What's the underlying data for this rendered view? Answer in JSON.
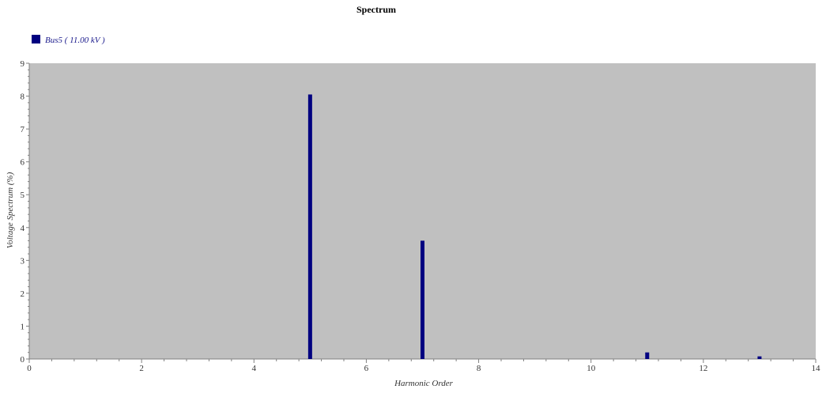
{
  "chart_data": {
    "type": "bar",
    "title": "Spectrum",
    "xlabel": "Harmonic Order",
    "ylabel": "Voltage Spectrum (%)",
    "xlim": [
      0,
      14
    ],
    "ylim": [
      0,
      9
    ],
    "xticks": [
      0,
      2,
      4,
      6,
      8,
      10,
      12,
      14
    ],
    "yticks": [
      0,
      1,
      2,
      3,
      4,
      5,
      6,
      7,
      8,
      9
    ],
    "grid": false,
    "legend_position": "top-left",
    "series": [
      {
        "name": "Bus5 ( 11.00 kV )",
        "color": "#000080",
        "x": [
          5,
          7,
          11,
          13
        ],
        "values": [
          8.05,
          3.6,
          0.2,
          0.08
        ]
      }
    ]
  },
  "colors": {
    "plot_background": "#c0c0c0",
    "bar": "#000080",
    "axis": "#808080"
  }
}
